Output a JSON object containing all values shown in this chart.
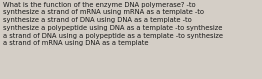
{
  "lines": [
    "What is the function of the enzyme DNA polymerase? -to",
    "synthesize a strand of mRNA using mRNA as a template -to",
    "synthesize a strand of DNA using DNA as a template -to",
    "synthesize a polypeptide using DNA as a template -to synthesize",
    "a strand of DNA using a polypeptide as a template -to synthesize",
    "a strand of mRNA using DNA as a template"
  ],
  "bg_color": "#d4cec6",
  "text_color": "#1a1a1a",
  "font_size": 4.9,
  "fig_width": 2.62,
  "fig_height": 0.79,
  "dpi": 100
}
